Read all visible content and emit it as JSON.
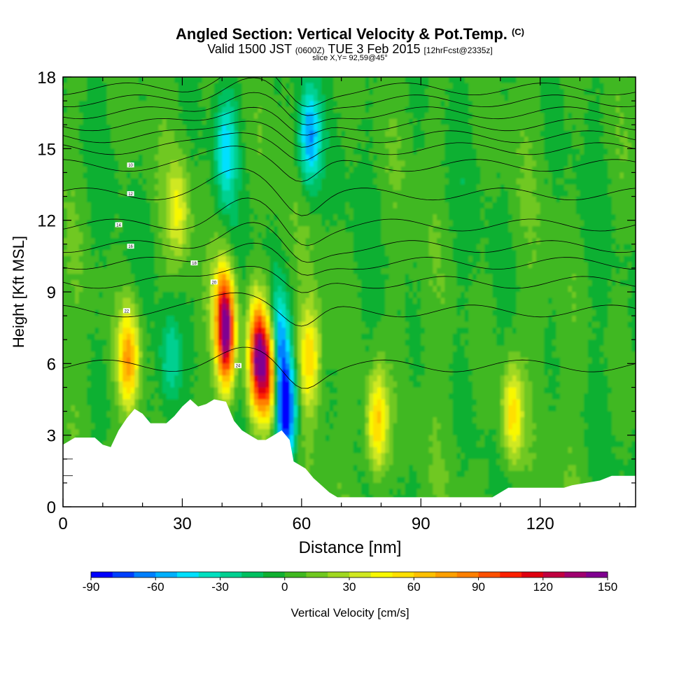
{
  "chart_data": {
    "type": "heatmap",
    "title": "Angled Section: Vertical Velocity & Pot.Temp.",
    "title_mark": "(C)",
    "subtitle_valid": "Valid 1500 JST",
    "subtitle_utc": "(0600Z)",
    "subtitle_date": "TUE 3 Feb 2015",
    "subtitle_fcst": "[12hrFcst@2335z]",
    "slice_label": "slice X,Y= 92,59@45°",
    "xlabel": "Distance [nm]",
    "ylabel": "Height [Kft MSL]",
    "xlim": [
      0,
      144
    ],
    "ylim": [
      0,
      18
    ],
    "x_ticks": [
      "0",
      "30",
      "60",
      "90",
      "120"
    ],
    "y_ticks": [
      "0",
      "3",
      "6",
      "9",
      "12",
      "15",
      "18"
    ],
    "colorbar": {
      "label": "Vertical Velocity [cm/s]",
      "ticks": [
        "-90",
        "-60",
        "-30",
        "0",
        "30",
        "60",
        "90",
        "120",
        "150"
      ],
      "min": -90,
      "max": 150,
      "step": 10,
      "colors": [
        "#0000ff",
        "#0040ff",
        "#0080ff",
        "#00b0ff",
        "#00e0ff",
        "#00e0c0",
        "#00d090",
        "#00c060",
        "#10b030",
        "#40b820",
        "#70c820",
        "#a0d820",
        "#d0e820",
        "#f8f800",
        "#ffe000",
        "#ffc000",
        "#ffa000",
        "#ff8000",
        "#ff5000",
        "#ff2000",
        "#e00010",
        "#c00040",
        "#a00070",
        "#800090"
      ]
    },
    "terrain": [
      [
        0,
        2.6
      ],
      [
        3,
        2.9
      ],
      [
        8,
        2.9
      ],
      [
        10,
        2.6
      ],
      [
        12,
        2.5
      ],
      [
        14,
        3.2
      ],
      [
        16,
        3.7
      ],
      [
        18,
        4.1
      ],
      [
        20,
        3.9
      ],
      [
        22,
        3.5
      ],
      [
        26,
        3.5
      ],
      [
        28,
        3.8
      ],
      [
        30,
        4.2
      ],
      [
        32,
        4.5
      ],
      [
        34,
        4.2
      ],
      [
        36,
        4.3
      ],
      [
        38,
        4.5
      ],
      [
        41,
        4.4
      ],
      [
        43,
        3.6
      ],
      [
        45,
        3.2
      ],
      [
        47,
        3.0
      ],
      [
        49,
        2.8
      ],
      [
        51,
        2.8
      ],
      [
        53,
        3.0
      ],
      [
        55,
        3.2
      ],
      [
        57,
        2.8
      ],
      [
        58,
        1.9
      ],
      [
        61,
        1.6
      ],
      [
        63,
        1.2
      ],
      [
        65,
        0.9
      ],
      [
        67,
        0.6
      ],
      [
        69,
        0.4
      ],
      [
        75,
        0.4
      ],
      [
        85,
        0.4
      ],
      [
        95,
        0.4
      ],
      [
        105,
        0.4
      ],
      [
        108,
        0.4
      ],
      [
        110,
        0.6
      ],
      [
        112,
        0.8
      ],
      [
        120,
        0.8
      ],
      [
        126,
        0.8
      ],
      [
        128,
        0.9
      ],
      [
        135,
        1.1
      ],
      [
        138,
        1.3
      ],
      [
        144,
        1.3
      ]
    ],
    "updrafts": [
      {
        "x": 16.5,
        "y": 6.2,
        "peak": 75
      },
      {
        "x": 41,
        "y": 7.2,
        "peak": 130
      },
      {
        "x": 49,
        "y": 6.3,
        "peak": 130
      },
      {
        "x": 52,
        "y": 5.8,
        "peak": 115
      },
      {
        "x": 62,
        "y": 6.3,
        "peak": 55
      },
      {
        "x": 79,
        "y": 3.5,
        "peak": 65
      },
      {
        "x": 113,
        "y": 3.8,
        "peak": 55
      },
      {
        "x": 29,
        "y": 12.5,
        "peak": 35
      },
      {
        "x": 40,
        "y": 8.5,
        "peak": 40
      }
    ],
    "downdrafts": [
      {
        "x": 56,
        "y": 4.0,
        "peak": -95
      },
      {
        "x": 54,
        "y": 6.8,
        "peak": -75
      },
      {
        "x": 62,
        "y": 15.5,
        "peak": -65
      },
      {
        "x": 41,
        "y": 15.0,
        "peak": -45
      },
      {
        "x": 27,
        "y": 6.0,
        "peak": -35
      }
    ],
    "isotherms": [
      {
        "label": "10",
        "base": 14.3,
        "lx": 17,
        "ly": 14.3
      },
      {
        "label": "12",
        "base": 13.1,
        "lx": 17,
        "ly": 13.1
      },
      {
        "label": "14",
        "base": 11.8,
        "lx": 14,
        "ly": 11.8
      },
      {
        "label": "16",
        "base": 10.9,
        "lx": 17,
        "ly": 10.9
      },
      {
        "label": "18",
        "base": 10.2,
        "lx": 33,
        "ly": 10.2
      },
      {
        "label": "20",
        "base": 9.4,
        "lx": 38,
        "ly": 9.4
      },
      {
        "label": "22",
        "base": 8.2,
        "lx": 16,
        "ly": 8.2
      },
      {
        "label": "24",
        "base": 5.9,
        "lx": 44,
        "ly": 5.9
      }
    ]
  }
}
